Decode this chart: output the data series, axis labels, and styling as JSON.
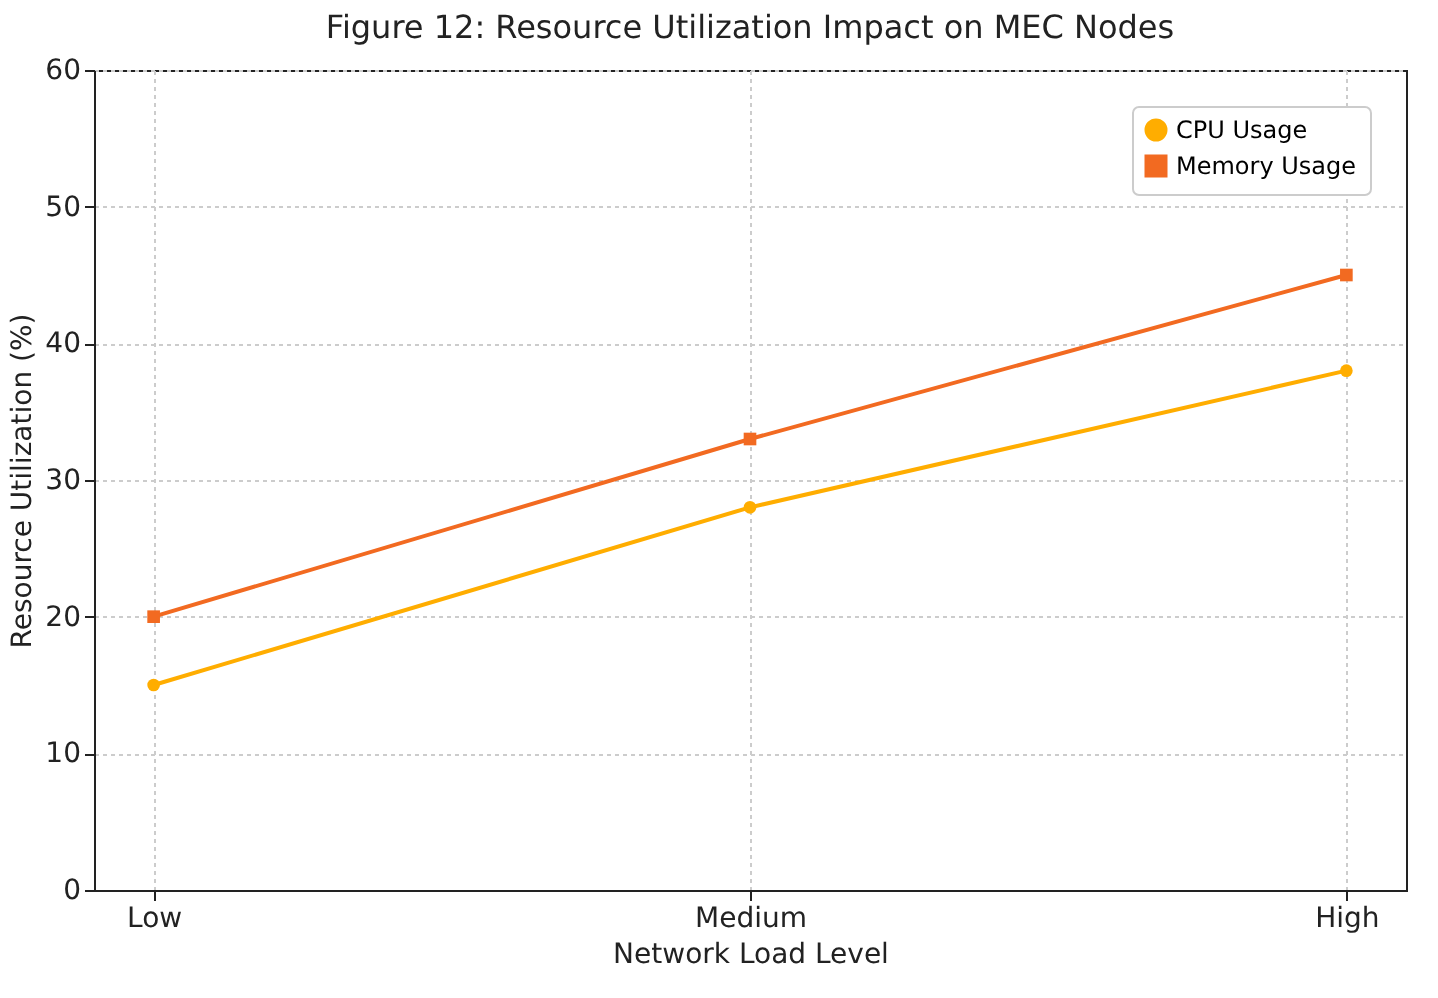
{
  "chart_data": {
    "type": "line",
    "title": "Figure 12: Resource Utilization Impact on MEC Nodes",
    "xlabel": "Network Load Level",
    "ylabel": "Resource Utilization (%)",
    "categories": [
      "Low",
      "Medium",
      "High"
    ],
    "series": [
      {
        "name": "CPU Usage",
        "color": "#ffad00",
        "marker": "circle",
        "values": [
          15,
          28,
          38
        ]
      },
      {
        "name": "Memory Usage",
        "color": "#f26a21",
        "marker": "square",
        "values": [
          20,
          33,
          45
        ]
      }
    ],
    "ylim": [
      0,
      60
    ],
    "yticks": [
      0,
      10,
      20,
      30,
      40,
      50,
      60
    ],
    "grid": true,
    "legend": "top right",
    "line_style": "solid"
  }
}
